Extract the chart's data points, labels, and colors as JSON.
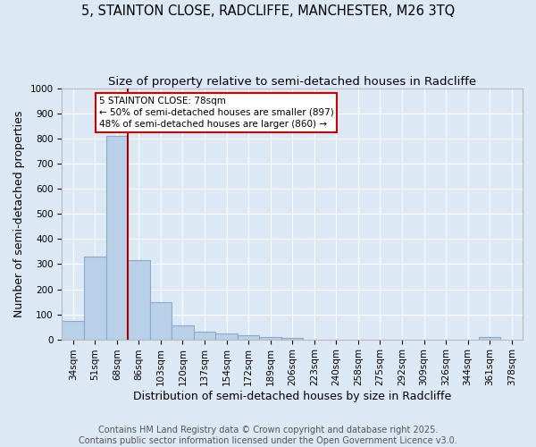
{
  "title": "5, STAINTON CLOSE, RADCLIFFE, MANCHESTER, M26 3TQ",
  "subtitle": "Size of property relative to semi-detached houses in Radcliffe",
  "xlabel": "Distribution of semi-detached houses by size in Radcliffe",
  "ylabel": "Number of semi-detached properties",
  "categories": [
    "34sqm",
    "51sqm",
    "68sqm",
    "86sqm",
    "103sqm",
    "120sqm",
    "137sqm",
    "154sqm",
    "172sqm",
    "189sqm",
    "206sqm",
    "223sqm",
    "240sqm",
    "258sqm",
    "275sqm",
    "292sqm",
    "309sqm",
    "326sqm",
    "344sqm",
    "361sqm",
    "378sqm"
  ],
  "values": [
    75,
    330,
    810,
    315,
    150,
    57,
    32,
    22,
    17,
    10,
    5,
    0,
    0,
    0,
    0,
    0,
    0,
    0,
    0,
    8,
    0
  ],
  "bar_color": "#b8d0e8",
  "bar_edge_color": "#88aac8",
  "property_line_index": 2.5,
  "property_label": "5 STAINTON CLOSE: 78sqm",
  "smaller_text": "← 50% of semi-detached houses are smaller (897)",
  "larger_text": "48% of semi-detached houses are larger (860) →",
  "line_color": "#aa0000",
  "box_edge_color": "#cc0000",
  "ylim_min": 0,
  "ylim_max": 1000,
  "yticks": [
    0,
    100,
    200,
    300,
    400,
    500,
    600,
    700,
    800,
    900,
    1000
  ],
  "footer_line1": "Contains HM Land Registry data © Crown copyright and database right 2025.",
  "footer_line2": "Contains public sector information licensed under the Open Government Licence v3.0.",
  "bg_color": "#dce8f4",
  "grid_color": "#ffffff",
  "title_fontsize": 10.5,
  "subtitle_fontsize": 9.5,
  "xlabel_fontsize": 9,
  "ylabel_fontsize": 9,
  "tick_fontsize": 7.5,
  "footer_fontsize": 7,
  "annot_fontsize": 7.5
}
